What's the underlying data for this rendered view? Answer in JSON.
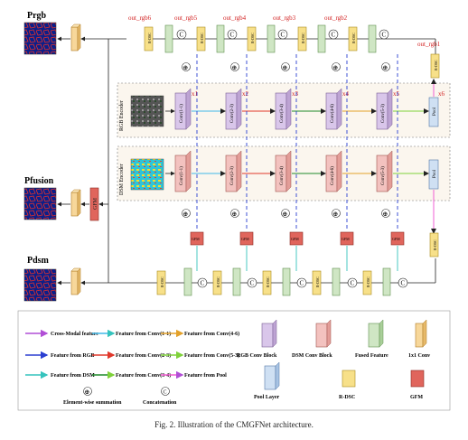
{
  "labels": {
    "p_rgb": "Prgb",
    "p_fusion": "Pfusion",
    "p_dsm": "Pdsm",
    "gfm": "GFM",
    "rdsc": "R-DSC",
    "pool": "Pool",
    "concat": "C",
    "sum": "⊕",
    "rgb_encoder": "RGB Encoder",
    "dsm_encoder": "DSM Encoder",
    "out_rgb": [
      "out_rgb6",
      "out_rgb5",
      "out_rgb4",
      "out_rgb3",
      "out_rgb2",
      "out_rgb1"
    ],
    "x_levels": [
      "x1",
      "x2",
      "x3",
      "x4",
      "x5",
      "x6"
    ],
    "convs": [
      "Conv(1-1)",
      "Conv(2-3)",
      "Conv(3-4)",
      "Conv(4-6)",
      "Conv(5-3)"
    ]
  },
  "legend": {
    "lines": [
      {
        "label": "Cross-Modal feature",
        "color": "#b14fd6"
      },
      {
        "label": "Feature from Conv(1-1)",
        "color": "#41b8e8"
      },
      {
        "label": "Feature from Conv(4-6)",
        "color": "#e3a12a"
      },
      {
        "label": "Feature from RGB",
        "color": "#2b3fd1"
      },
      {
        "label": "Feature from Conv(2-3)",
        "color": "#e0382b"
      },
      {
        "label": "Feature from Conv(5-3)",
        "color": "#7fd13a"
      },
      {
        "label": "Feature from DSM",
        "color": "#35c3bd"
      },
      {
        "label": "Feature from Conv(3-4)",
        "color": "#1f8a2b"
      },
      {
        "label": "Feature from Pool",
        "color": "#f25fd4"
      }
    ],
    "blocks": [
      {
        "label": "RGB Conv Block",
        "color": "#d9c6ea"
      },
      {
        "label": "DSM Conv Block",
        "color": "#f3c2bf"
      },
      {
        "label": "Fused Feature",
        "color": "#cfe6c4"
      },
      {
        "label": "1x1 Conv",
        "color": "#f7d79a"
      },
      {
        "label": "Pool Layer",
        "color": "#cfe0f3"
      },
      {
        "label": "R-DSC",
        "color": "#f7e089"
      },
      {
        "label": "GFM",
        "color": "#e0655c"
      }
    ],
    "symbols": [
      {
        "label": "Element-wise summation",
        "glyph": "⊕"
      },
      {
        "label": "Concatenation",
        "glyph": "C"
      }
    ]
  },
  "caption": "Fig. 2. Illustration of the CMGFNet architecture."
}
